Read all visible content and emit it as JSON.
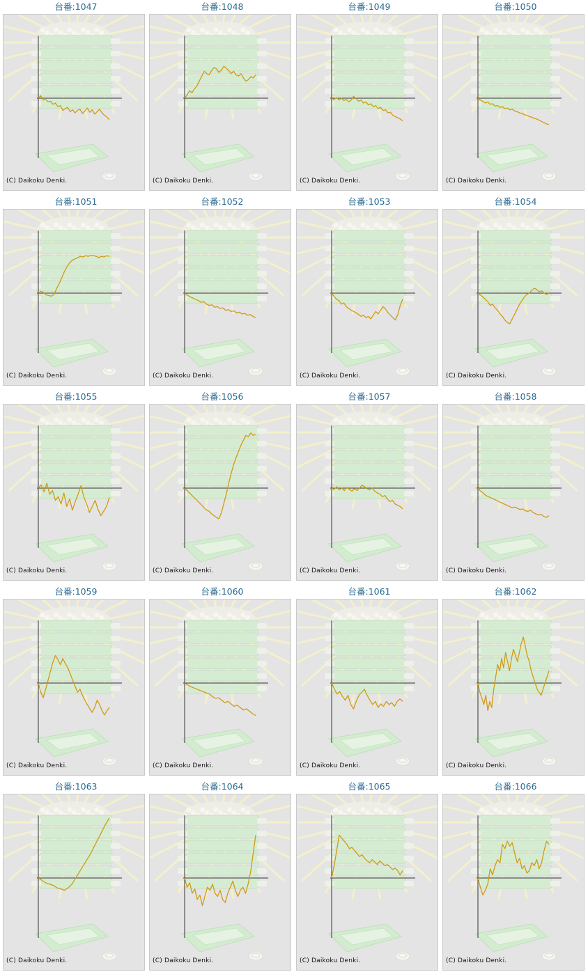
{
  "colors": {
    "line": "#d19a14",
    "axis": "#333333",
    "label": "#2a6a90",
    "background": "#e4e4e4"
  },
  "copyright": "(C) Daikoku Denki.",
  "chart_data": [
    {
      "type": "line",
      "label": "台番:1047",
      "y": [
        0,
        4,
        -3,
        -2,
        -6,
        -5,
        -10,
        -8,
        -14,
        -12,
        -20,
        -17,
        -15,
        -22,
        -19,
        -24,
        -20,
        -18,
        -25,
        -21,
        -16,
        -23,
        -19,
        -26,
        -22,
        -18,
        -24,
        -28,
        -31,
        -35
      ]
    },
    {
      "type": "line",
      "label": "台番:1048",
      "y": [
        0,
        5,
        12,
        9,
        15,
        20,
        28,
        36,
        44,
        40,
        38,
        45,
        50,
        48,
        42,
        46,
        52,
        49,
        45,
        40,
        44,
        38,
        36,
        40,
        33,
        28,
        30,
        35,
        33,
        38
      ]
    },
    {
      "type": "line",
      "label": "台番:1049",
      "y": [
        0,
        -2,
        1,
        -3,
        0,
        -4,
        -2,
        -6,
        -3,
        3,
        -1,
        -5,
        -3,
        -8,
        -6,
        -11,
        -9,
        -14,
        -12,
        -17,
        -15,
        -20,
        -19,
        -24,
        -23,
        -28,
        -30,
        -32,
        -34,
        -37
      ]
    },
    {
      "type": "line",
      "label": "台番:1050",
      "y": [
        0,
        -3,
        -5,
        -8,
        -6,
        -10,
        -9,
        -13,
        -12,
        -15,
        -14,
        -17,
        -16,
        -19,
        -18,
        -21,
        -22,
        -24,
        -25,
        -27,
        -28,
        -30,
        -31,
        -33,
        -34,
        -36,
        -38,
        -40,
        -42,
        -43
      ]
    },
    {
      "type": "line",
      "label": "台番:1051",
      "y": [
        0,
        3,
        1,
        -3,
        -4,
        -5,
        -2,
        8,
        16,
        26,
        36,
        44,
        50,
        54,
        56,
        58,
        60,
        59,
        61,
        60,
        62,
        61,
        60,
        58,
        60,
        59,
        61,
        60
      ]
    },
    {
      "type": "line",
      "label": "台番:1052",
      "y": [
        0,
        -3,
        -6,
        -8,
        -10,
        -12,
        -15,
        -14,
        -18,
        -20,
        -19,
        -23,
        -22,
        -25,
        -24,
        -28,
        -27,
        -30,
        -29,
        -32,
        -31,
        -34,
        -33,
        -36,
        -35,
        -38,
        -40
      ]
    },
    {
      "type": "line",
      "label": "台番:1053",
      "y": [
        0,
        -5,
        -10,
        -12,
        -18,
        -16,
        -22,
        -25,
        -28,
        -30,
        -32,
        -35,
        -38,
        -36,
        -40,
        -38,
        -42,
        -36,
        -30,
        -34,
        -28,
        -22,
        -26,
        -32,
        -36,
        -40,
        -44,
        -35,
        -20,
        -10
      ]
    },
    {
      "type": "line",
      "label": "台番:1054",
      "y": [
        0,
        -3,
        -6,
        -10,
        -14,
        -20,
        -18,
        -24,
        -28,
        -34,
        -38,
        -44,
        -48,
        -50,
        -42,
        -34,
        -26,
        -18,
        -12,
        -6,
        -2,
        0,
        5,
        8,
        6,
        2,
        4,
        0,
        -2,
        0
      ]
    },
    {
      "type": "line",
      "label": "台番:1055",
      "y": [
        0,
        5,
        -6,
        8,
        -10,
        -4,
        -20,
        -14,
        -26,
        -8,
        -30,
        -18,
        -36,
        -22,
        -10,
        4,
        -14,
        -26,
        -40,
        -30,
        -20,
        -35,
        -45,
        -38,
        -30,
        -15
      ]
    },
    {
      "type": "line",
      "label": "台番:1056",
      "y": [
        0,
        -4,
        -8,
        -12,
        -16,
        -20,
        -24,
        -28,
        -32,
        -36,
        -38,
        -42,
        -45,
        -48,
        -50,
        -40,
        -25,
        -10,
        8,
        24,
        38,
        50,
        60,
        70,
        78,
        86,
        84,
        90,
        86,
        88
      ]
    },
    {
      "type": "line",
      "label": "台番:1057",
      "y": [
        0,
        -2,
        2,
        -3,
        0,
        -4,
        1,
        -2,
        -5,
        -1,
        -4,
        0,
        5,
        2,
        -1,
        -3,
        0,
        -5,
        -8,
        -10,
        -14,
        -12,
        -18,
        -22,
        -20,
        -26,
        -28,
        -30,
        -34
      ]
    },
    {
      "type": "line",
      "label": "台番:1058",
      "y": [
        0,
        -5,
        -8,
        -12,
        -14,
        -16,
        -18,
        -20,
        -22,
        -24,
        -26,
        -28,
        -30,
        -32,
        -31,
        -33,
        -35,
        -34,
        -37,
        -38,
        -36,
        -40,
        -42,
        -44,
        -43,
        -46,
        -48,
        -45
      ]
    },
    {
      "type": "line",
      "label": "台番:1059",
      "y": [
        0,
        -15,
        -24,
        -10,
        5,
        20,
        35,
        45,
        38,
        30,
        40,
        32,
        25,
        15,
        5,
        -5,
        -15,
        -10,
        -20,
        -28,
        -35,
        -42,
        -48,
        -40,
        -28,
        -35,
        -45,
        -52,
        -45,
        -40
      ]
    },
    {
      "type": "line",
      "label": "台番:1060",
      "y": [
        0,
        -3,
        -6,
        -8,
        -10,
        -12,
        -14,
        -16,
        -18,
        -22,
        -25,
        -24,
        -28,
        -32,
        -30,
        -34,
        -38,
        -36,
        -40,
        -44,
        -42,
        -46,
        -50,
        -53
      ]
    },
    {
      "type": "line",
      "label": "台番:1061",
      "y": [
        0,
        -10,
        -18,
        -14,
        -22,
        -28,
        -20,
        -35,
        -42,
        -30,
        -20,
        -15,
        -10,
        -20,
        -28,
        -35,
        -30,
        -40,
        -34,
        -38,
        -30,
        -35,
        -32,
        -38,
        -30,
        -26,
        -30
      ]
    },
    {
      "type": "line",
      "label": "台番:1062",
      "y": [
        0,
        -15,
        -25,
        -35,
        -20,
        -45,
        -30,
        -40,
        -10,
        10,
        30,
        20,
        40,
        25,
        50,
        35,
        20,
        40,
        55,
        45,
        35,
        50,
        65,
        75,
        60,
        45,
        35,
        20,
        10,
        0,
        -10,
        -15,
        -20,
        -10,
        0,
        10,
        20
      ]
    },
    {
      "type": "line",
      "label": "台番:1063",
      "y": [
        0,
        -4,
        -8,
        -10,
        -12,
        -16,
        -18,
        -20,
        -16,
        -10,
        0,
        10,
        20,
        30,
        40,
        52,
        64,
        76,
        88,
        98
      ]
    },
    {
      "type": "line",
      "label": "台番:1064",
      "y": [
        0,
        -15,
        -8,
        -25,
        -18,
        -35,
        -28,
        -45,
        -30,
        -15,
        -20,
        -10,
        -25,
        -30,
        -20,
        -35,
        -40,
        -25,
        -15,
        -5,
        -20,
        -30,
        -20,
        -15,
        -25,
        -10,
        10,
        40,
        70
      ]
    },
    {
      "type": "line",
      "label": "台番:1065",
      "y": [
        0,
        20,
        45,
        70,
        65,
        60,
        55,
        48,
        50,
        45,
        40,
        35,
        38,
        32,
        28,
        25,
        30,
        26,
        22,
        28,
        24,
        20,
        22,
        18,
        14,
        16,
        12,
        5,
        12
      ]
    },
    {
      "type": "line",
      "label": "台番:1066",
      "y": [
        0,
        -15,
        -28,
        -20,
        -10,
        15,
        5,
        20,
        30,
        25,
        55,
        48,
        60,
        52,
        58,
        40,
        25,
        32,
        15,
        20,
        8,
        12,
        25,
        20,
        30,
        15,
        25,
        45,
        60,
        55
      ]
    }
  ]
}
